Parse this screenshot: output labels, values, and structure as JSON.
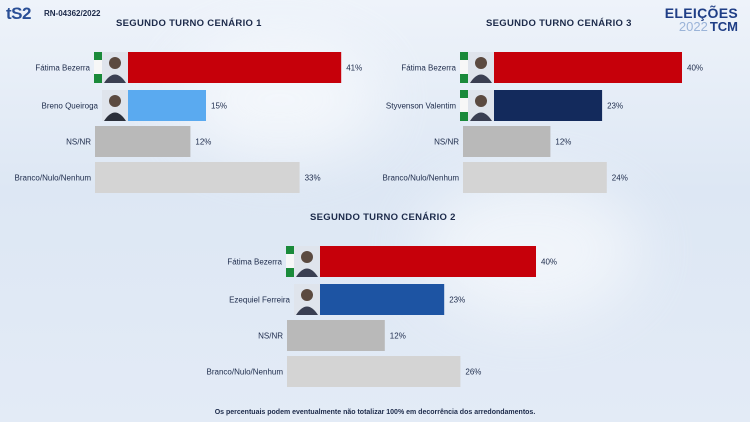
{
  "header": {
    "logo_text": "tS2",
    "registro": "RN-04362/2022",
    "brand_line1": "ELEIÇÕES",
    "brand_year": "2022",
    "brand_line2": "TCM"
  },
  "colors": {
    "red": "#c6000a",
    "light_blue": "#5aaaf0",
    "navy": "#132a5c",
    "blue": "#1d54a3",
    "gray": "#b9b9b9",
    "light_gray": "#d4d4d4"
  },
  "footnote": "Os percentuais podem eventualmente não totalizar 100% em decorrência dos arredondamentos.",
  "chart_data": [
    {
      "type": "bar",
      "title": "SEGUNDO TURNO CENÁRIO 1",
      "categories": [
        "Fátima Bezerra",
        "Breno Queiroga",
        "NS/NR",
        "Branco/Nulo/Nenhum"
      ],
      "values": [
        41,
        15,
        12,
        33
      ],
      "value_labels": [
        "41%",
        "15%",
        "12%",
        "33%"
      ],
      "bar_colors": [
        "#c6000a",
        "#5aaaf0",
        "#b9b9b9",
        "#d4d4d4"
      ],
      "photos": [
        true,
        true,
        false,
        false
      ],
      "flags": [
        true,
        false,
        false,
        false
      ]
    },
    {
      "type": "bar",
      "title": "SEGUNDO TURNO CENÁRIO 3",
      "categories": [
        "Fátima Bezerra",
        "Styvenson Valentim",
        "NS/NR",
        "Branco/Nulo/Nenhum"
      ],
      "values": [
        40,
        23,
        12,
        24
      ],
      "value_labels": [
        "40%",
        "23%",
        "12%",
        "24%"
      ],
      "bar_colors": [
        "#c6000a",
        "#132a5c",
        "#b9b9b9",
        "#d4d4d4"
      ],
      "photos": [
        true,
        true,
        false,
        false
      ],
      "flags": [
        true,
        true,
        false,
        false
      ]
    },
    {
      "type": "bar",
      "title": "SEGUNDO TURNO CENÁRIO 2",
      "categories": [
        "Fátima Bezerra",
        "Ezequiel Ferreira",
        "NS/NR",
        "Branco/Nulo/Nenhum"
      ],
      "values": [
        40,
        23,
        12,
        26
      ],
      "value_labels": [
        "40%",
        "23%",
        "12%",
        "26%"
      ],
      "bar_colors": [
        "#c6000a",
        "#1d54a3",
        "#b9b9b9",
        "#d4d4d4"
      ],
      "photos": [
        true,
        true,
        false,
        false
      ],
      "flags": [
        true,
        false,
        false,
        false
      ]
    }
  ]
}
